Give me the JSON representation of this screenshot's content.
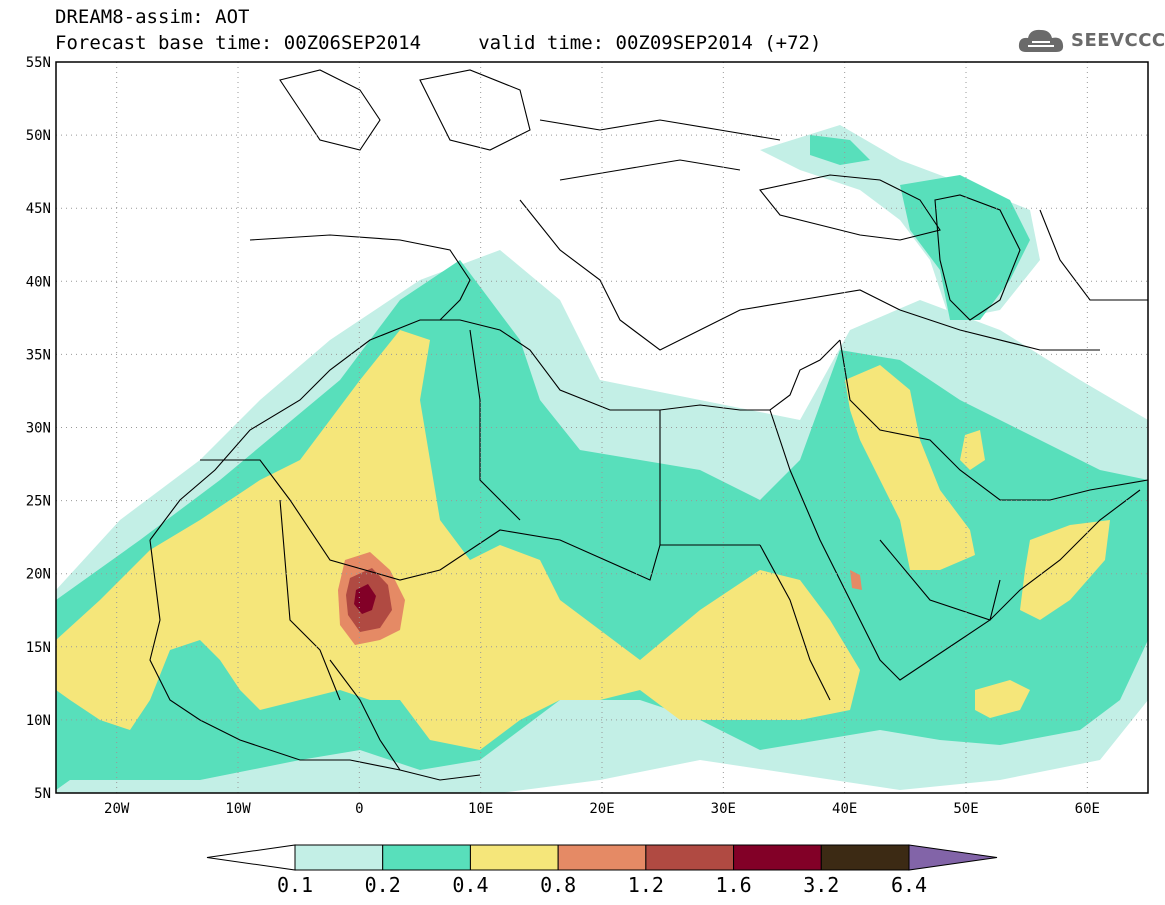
{
  "header": {
    "title_line1": "DREAM8-assim: AOT",
    "title_line2": "Forecast base time: 00Z06SEP2014     valid time: 00Z09SEP2014 (+72)"
  },
  "logo": {
    "text": "SEEVCCC",
    "icon": "cloud-icon"
  },
  "map": {
    "lat_labels": [
      "55N",
      "50N",
      "45N",
      "40N",
      "35N",
      "30N",
      "25N",
      "20N",
      "15N",
      "10N",
      "5N"
    ],
    "lon_labels": [
      "20W",
      "10W",
      "0",
      "10E",
      "20E",
      "30E",
      "40E",
      "50E",
      "60E"
    ],
    "lat_range": [
      5,
      55
    ],
    "lon_range": [
      -25,
      65
    ],
    "grid": "dotted"
  },
  "legend": {
    "levels": [
      "0.1",
      "0.2",
      "0.4",
      "0.8",
      "1.2",
      "1.6",
      "3.2",
      "6.4"
    ],
    "colors": [
      "#ffffff",
      "#c3efe6",
      "#58dfbb",
      "#f5e67a",
      "#e58a65",
      "#b04a42",
      "#820027",
      "#3c2a14",
      "#8264a8"
    ]
  },
  "colors": {
    "c01": "#c3efe6",
    "c02": "#58dfbb",
    "c04": "#f5e67a",
    "c08": "#e58a65",
    "c12": "#b04a42",
    "c16": "#820027"
  }
}
